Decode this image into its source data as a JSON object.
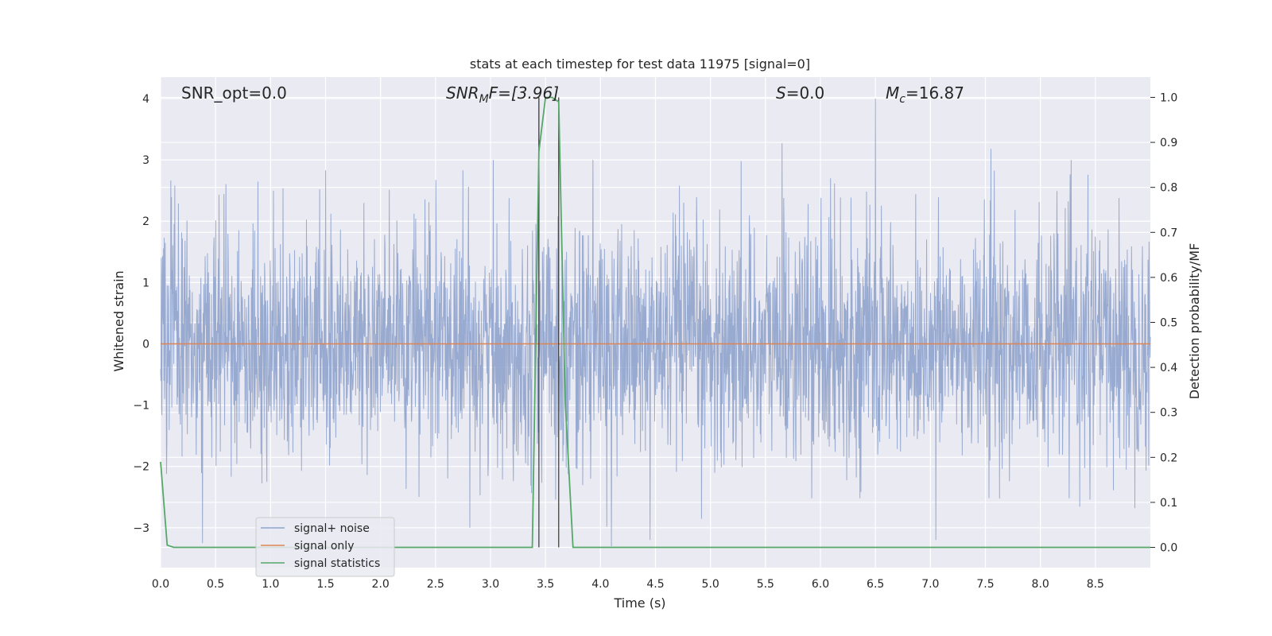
{
  "chart_data": {
    "type": "line",
    "title": "stats at each timestep for test data 11975 [signal=0]",
    "xlabel": "Time (s)",
    "ylabel_left": "Whitened strain",
    "ylabel_right": "Detection probability/MF",
    "xlim": [
      0.0,
      9.0
    ],
    "ylim_left": [
      -3.65,
      4.35
    ],
    "ylim_right": [
      -0.045,
      1.045
    ],
    "x_ticks": [
      "0.0",
      "0.5",
      "1.0",
      "1.5",
      "2.0",
      "2.5",
      "3.0",
      "3.5",
      "4.0",
      "4.5",
      "5.0",
      "5.5",
      "6.0",
      "6.5",
      "7.0",
      "7.5",
      "8.0",
      "8.5"
    ],
    "y_left_ticks": [
      "−3",
      "−2",
      "−1",
      "0",
      "1",
      "2",
      "3",
      "4"
    ],
    "y_right_ticks": [
      "0.0",
      "0.1",
      "0.2",
      "0.3",
      "0.4",
      "0.5",
      "0.6",
      "0.7",
      "0.8",
      "0.9",
      "1.0"
    ],
    "grid": true,
    "legend_position": "lower-left",
    "annotations": {
      "snr_opt": "SNR_opt=0.0",
      "snr_mf_base": "SNR",
      "snr_mf_sub": "M",
      "snr_mf_rest": "F=[3.96]",
      "s_var": "S",
      "s_rest": "=0.0",
      "mc_var": "M",
      "mc_sub": "c",
      "mc_rest": "=16.87"
    },
    "vertical_lines_x": [
      3.44,
      3.62
    ],
    "series": [
      {
        "name": "signal+ noise",
        "axis": "left",
        "color": "#8fa3cc",
        "description_values": "whitened noise, roughly standard normal, bounded about -3.3 to 4.0",
        "peaks": [
          [
            0.13,
            2.58
          ],
          [
            0.38,
            -3.25
          ],
          [
            1.5,
            2.83
          ],
          [
            3.44,
            4.0
          ],
          [
            4.1,
            -3.3
          ],
          [
            4.45,
            -3.2
          ],
          [
            5.65,
            3.27
          ],
          [
            6.5,
            4.0
          ],
          [
            7.05,
            -3.2
          ],
          [
            7.55,
            3.18
          ]
        ]
      },
      {
        "name": "signal only",
        "axis": "left",
        "color": "#dd8452",
        "x": [
          0.0,
          9.0
        ],
        "y": [
          0.0,
          0.0
        ]
      },
      {
        "name": "signal statistics",
        "axis": "right",
        "color": "#55a868",
        "x": [
          0.0,
          0.06,
          0.12,
          3.38,
          3.44,
          3.5,
          3.56,
          3.62,
          3.68,
          3.75,
          9.0
        ],
        "y": [
          0.19,
          0.005,
          0.0,
          0.0,
          0.88,
          1.0,
          1.0,
          0.99,
          0.32,
          0.0,
          0.0
        ]
      }
    ]
  }
}
